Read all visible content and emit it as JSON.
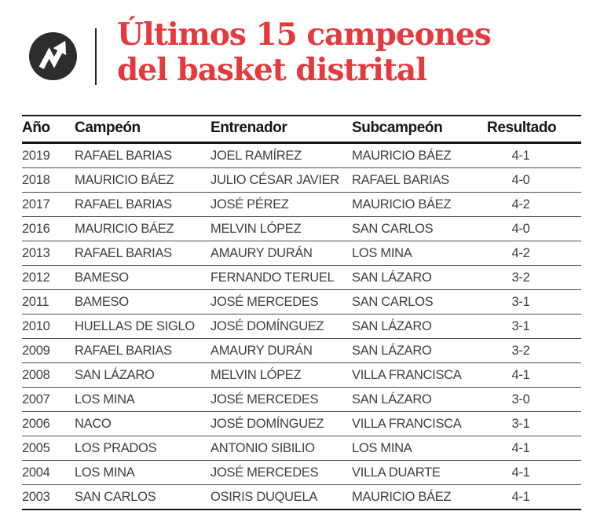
{
  "colors": {
    "accent_red": "#e43a3d",
    "logo_bg": "#2d2d2d",
    "header_text": "#161616",
    "cell_text": "#3f3f3f",
    "rule_dark": "#161616",
    "row_line": "#4d4d4d"
  },
  "masthead": {
    "logo_icon": "up-trend-arrow-icon",
    "title_line1": "Últimos 15 campeones",
    "title_line2": "del basket distrital"
  },
  "chart_data": {
    "type": "table",
    "title": "Últimos 15 campeones del basket distrital",
    "columns": [
      "Año",
      "Campeón",
      "Entrenador",
      "Subcampeón",
      "Resultado"
    ],
    "rows": [
      [
        "2019",
        "RAFAEL BARIAS",
        "JOEL RAMÍREZ",
        "MAURICIO BÁEZ",
        "4-1"
      ],
      [
        "2018",
        "MAURICIO BÁEZ",
        "JULIO CÉSAR JAVIER",
        "RAFAEL BARIAS",
        "4-0"
      ],
      [
        "2017",
        "RAFAEL BARIAS",
        "JOSÉ PÉREZ",
        "MAURICIO BÁEZ",
        "4-2"
      ],
      [
        "2016",
        "MAURICIO BÁEZ",
        "MELVIN LÓPEZ",
        "SAN CARLOS",
        "4-0"
      ],
      [
        "2013",
        "RAFAEL BARIAS",
        "AMAURY DURÁN",
        "LOS MINA",
        "4-2"
      ],
      [
        "2012",
        "BAMESO",
        "FERNANDO TERUEL",
        "SAN LÁZARO",
        "3-2"
      ],
      [
        "2011",
        "BAMESO",
        "JOSÉ MERCEDES",
        "SAN CARLOS",
        "3-1"
      ],
      [
        "2010",
        "HUELLAS DE SIGLO",
        "JOSÉ DOMÍNGUEZ",
        "SAN LÁZARO",
        "3-1"
      ],
      [
        "2009",
        "RAFAEL BARIAS",
        "AMAURY DURÁN",
        "SAN LÁZARO",
        "3-2"
      ],
      [
        "2008",
        "SAN LÁZARO",
        "MELVIN LÓPEZ",
        "VILLA FRANCISCA",
        "4-1"
      ],
      [
        "2007",
        "LOS MINA",
        "JOSÉ MERCEDES",
        "SAN LÁZARO",
        "3-0"
      ],
      [
        "2006",
        "NACO",
        "JOSÉ DOMÍNGUEZ",
        "VILLA FRANCISCA",
        "3-1"
      ],
      [
        "2005",
        "LOS PRADOS",
        "ANTONIO SIBILIO",
        "LOS MINA",
        "4-1"
      ],
      [
        "2004",
        "LOS MINA",
        "JOSÉ MERCEDES",
        "VILLA DUARTE",
        "4-1"
      ],
      [
        "2003",
        "SAN CARLOS",
        "OSIRIS DUQUELA",
        "MAURICIO BÁEZ",
        "4-1"
      ]
    ]
  }
}
